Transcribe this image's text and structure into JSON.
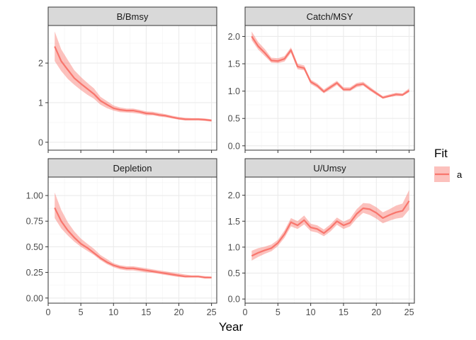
{
  "chart_data": {
    "type": "line",
    "xlabel": "Year",
    "legend": {
      "title": "Fit",
      "position": "right",
      "entries": [
        "a"
      ]
    },
    "colors": {
      "line": "#F8766D",
      "band": "#F8766D",
      "strip_bg": "#D9D9D9",
      "grid_major": "#EBEBEB",
      "grid_minor": "#F5F5F5",
      "border": "#333333"
    },
    "grid": true,
    "x": [
      1,
      2,
      3,
      4,
      5,
      6,
      7,
      8,
      9,
      10,
      11,
      12,
      13,
      14,
      15,
      16,
      17,
      18,
      19,
      20,
      21,
      22,
      23,
      24,
      25
    ],
    "xlim": [
      0,
      25.8
    ],
    "xticks": [
      0,
      5,
      10,
      15,
      20,
      25
    ],
    "panels": [
      {
        "title": "B/Bmsy",
        "ylim": [
          -0.2,
          2.95
        ],
        "yticks": [
          0,
          1,
          2
        ],
        "ytick_labels": [
          "0",
          "1",
          "2"
        ],
        "series": [
          {
            "name": "a",
            "values": [
              2.42,
              2.05,
              1.83,
              1.62,
              1.48,
              1.35,
              1.22,
              1.05,
              0.95,
              0.86,
              0.82,
              0.8,
              0.8,
              0.77,
              0.73,
              0.72,
              0.69,
              0.67,
              0.63,
              0.6,
              0.58,
              0.58,
              0.58,
              0.57,
              0.55
            ],
            "lower": [
              2.05,
              1.8,
              1.6,
              1.45,
              1.32,
              1.2,
              1.1,
              0.95,
              0.86,
              0.8,
              0.76,
              0.75,
              0.74,
              0.72,
              0.68,
              0.68,
              0.65,
              0.63,
              0.6,
              0.57,
              0.55,
              0.55,
              0.55,
              0.54,
              0.52
            ],
            "upper": [
              2.8,
              2.35,
              2.08,
              1.82,
              1.65,
              1.5,
              1.36,
              1.15,
              1.04,
              0.93,
              0.88,
              0.85,
              0.85,
              0.82,
              0.78,
              0.77,
              0.74,
              0.71,
              0.67,
              0.64,
              0.62,
              0.61,
              0.61,
              0.6,
              0.58
            ]
          }
        ]
      },
      {
        "title": "Catch/MSY",
        "ylim": [
          -0.08,
          2.2
        ],
        "yticks": [
          0,
          0.5,
          1,
          1.5,
          2
        ],
        "ytick_labels": [
          "0.0",
          "0.5",
          "1.0",
          "1.5",
          "2.0"
        ],
        "series": [
          {
            "name": "a",
            "values": [
              2.0,
              1.82,
              1.7,
              1.56,
              1.55,
              1.59,
              1.75,
              1.45,
              1.42,
              1.17,
              1.1,
              0.99,
              1.07,
              1.15,
              1.03,
              1.03,
              1.11,
              1.13,
              1.04,
              0.96,
              0.88,
              0.91,
              0.94,
              0.93,
              1.01
            ],
            "lower": [
              1.93,
              1.76,
              1.64,
              1.52,
              1.51,
              1.54,
              1.7,
              1.4,
              1.38,
              1.13,
              1.06,
              0.96,
              1.03,
              1.11,
              1.0,
              1.0,
              1.07,
              1.1,
              1.01,
              0.93,
              0.86,
              0.89,
              0.91,
              0.91,
              0.98
            ],
            "upper": [
              2.09,
              1.9,
              1.77,
              1.61,
              1.6,
              1.64,
              1.8,
              1.5,
              1.47,
              1.21,
              1.14,
              1.03,
              1.11,
              1.19,
              1.07,
              1.07,
              1.15,
              1.17,
              1.08,
              0.99,
              0.91,
              0.94,
              0.97,
              0.96,
              1.05
            ]
          }
        ]
      },
      {
        "title": "Depletion",
        "ylim": [
          -0.05,
          1.18
        ],
        "yticks": [
          0,
          0.25,
          0.5,
          0.75,
          1.0
        ],
        "ytick_labels": [
          "0.00",
          "0.25",
          "0.50",
          "0.75",
          "1.00"
        ],
        "series": [
          {
            "name": "a",
            "values": [
              0.88,
              0.75,
              0.66,
              0.59,
              0.53,
              0.49,
              0.44,
              0.39,
              0.35,
              0.32,
              0.3,
              0.29,
              0.29,
              0.28,
              0.27,
              0.26,
              0.25,
              0.24,
              0.23,
              0.22,
              0.21,
              0.21,
              0.21,
              0.2,
              0.2
            ],
            "lower": [
              0.78,
              0.68,
              0.61,
              0.55,
              0.5,
              0.46,
              0.42,
              0.37,
              0.33,
              0.3,
              0.28,
              0.27,
              0.27,
              0.26,
              0.25,
              0.245,
              0.235,
              0.225,
              0.215,
              0.205,
              0.2,
              0.2,
              0.2,
              0.19,
              0.19
            ],
            "upper": [
              1.03,
              0.86,
              0.74,
              0.65,
              0.58,
              0.53,
              0.48,
              0.42,
              0.38,
              0.34,
              0.32,
              0.31,
              0.31,
              0.3,
              0.29,
              0.28,
              0.27,
              0.26,
              0.25,
              0.24,
              0.23,
              0.22,
              0.22,
              0.215,
              0.21
            ]
          }
        ]
      },
      {
        "title": "U/Umsy",
        "ylim": [
          -0.08,
          2.35
        ],
        "yticks": [
          0,
          0.5,
          1,
          1.5,
          2
        ],
        "ytick_labels": [
          "0.0",
          "0.5",
          "1.0",
          "1.5",
          "2.0"
        ],
        "series": [
          {
            "name": "a",
            "values": [
              0.83,
              0.89,
              0.94,
              0.98,
              1.08,
              1.25,
              1.48,
              1.42,
              1.52,
              1.38,
              1.35,
              1.27,
              1.37,
              1.5,
              1.42,
              1.47,
              1.64,
              1.75,
              1.73,
              1.66,
              1.56,
              1.62,
              1.67,
              1.7,
              1.89
            ],
            "lower": [
              0.74,
              0.81,
              0.87,
              0.92,
              1.02,
              1.18,
              1.4,
              1.35,
              1.44,
              1.31,
              1.28,
              1.21,
              1.3,
              1.43,
              1.35,
              1.4,
              1.55,
              1.66,
              1.62,
              1.55,
              1.46,
              1.51,
              1.55,
              1.57,
              1.72
            ],
            "upper": [
              0.93,
              0.98,
              1.01,
              1.05,
              1.14,
              1.32,
              1.56,
              1.5,
              1.61,
              1.45,
              1.42,
              1.34,
              1.44,
              1.57,
              1.49,
              1.55,
              1.73,
              1.85,
              1.84,
              1.77,
              1.67,
              1.73,
              1.8,
              1.84,
              2.1
            ]
          }
        ]
      }
    ]
  }
}
